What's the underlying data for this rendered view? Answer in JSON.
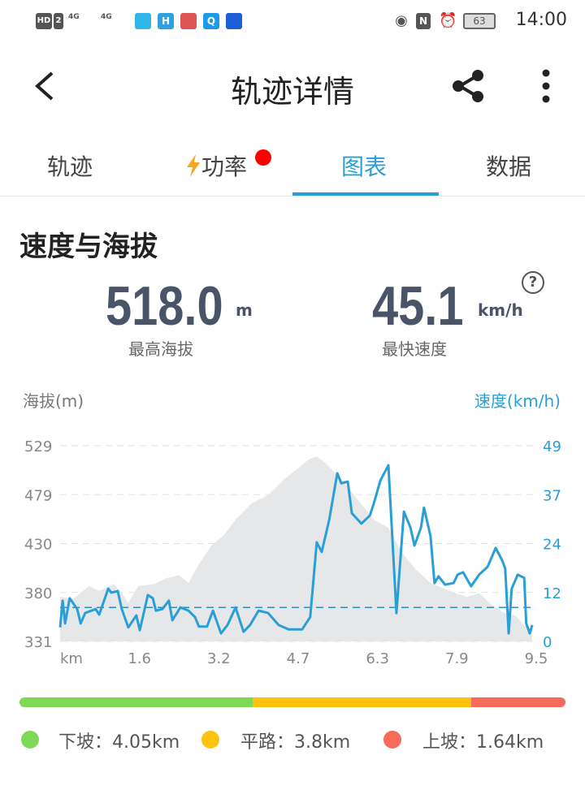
{
  "status_bar": {
    "left_icons": [
      "hd-icon",
      "sim-2-icon",
      "signal-4g-icon",
      "signal-4g-icon",
      "location-app-icon",
      "h-app-icon",
      "book-app-icon",
      "search-app-icon",
      "bulb-app-icon"
    ],
    "hd": "HD",
    "sim": "2",
    "net1": "4G",
    "net2": "4G",
    "right_icons": [
      "eye-icon",
      "nfc-icon",
      "alarm-icon",
      "battery-icon"
    ],
    "battery": "63",
    "time": "14:00"
  },
  "header": {
    "title": "轨迹详情",
    "back_icon": "chevron-left-icon",
    "share_icon": "share-icon",
    "more_icon": "more-vertical-icon"
  },
  "tabs": [
    {
      "label": "轨迹"
    },
    {
      "label": "功率",
      "icon": "lightning-icon",
      "badge": true
    },
    {
      "label": "图表",
      "active": true
    },
    {
      "label": "数据"
    }
  ],
  "section": {
    "title": "速度与海拔",
    "help_icon": "question-icon",
    "max_altitude": {
      "value": "518.0",
      "unit": "m",
      "label": "最高海拔"
    },
    "max_speed": {
      "value": "45.1",
      "unit": "km/h",
      "label": "最快速度"
    }
  },
  "colors": {
    "accent": "#2a9fd6",
    "speed_line": "#2a9fd6",
    "elevation_fill": "#e6e7e9",
    "downhill": "#7ed957",
    "flat": "#ffc20e",
    "uphill": "#f76b5b",
    "badge": "#ff0000",
    "power_icon": "#f5a623"
  },
  "chart_data": {
    "type": "line",
    "ylabel_left": "海拔(m)",
    "ylabel_right": "速度(km/h)",
    "x_ticks": [
      "km",
      "1.6",
      "3.2",
      "4.7",
      "6.3",
      "7.9",
      "9.5"
    ],
    "y_left_ticks": [
      "529",
      "479",
      "430",
      "380",
      "331"
    ],
    "y_right_ticks": [
      "49",
      "37",
      "24",
      "12",
      "0"
    ],
    "xlim": [
      0,
      9.5
    ],
    "ylim_left": [
      331,
      529
    ],
    "ylim_right": [
      0,
      49
    ],
    "grid": true,
    "avg_speed": 8.5,
    "elevation": {
      "x": [
        0,
        0.26,
        0.58,
        0.78,
        1.07,
        1.23,
        1.36,
        1.56,
        1.88,
        2.12,
        2.37,
        2.56,
        2.77,
        3.02,
        3.26,
        3.5,
        3.83,
        4.15,
        4.47,
        4.72,
        4.96,
        5.12,
        5.28,
        5.61,
        5.93,
        6.26,
        6.55,
        6.82,
        7.07,
        7.39,
        7.88,
        8.12,
        8.36,
        8.61,
        8.85,
        9.09,
        9.26,
        9.42
      ],
      "y": [
        376,
        374,
        387,
        382,
        389,
        380,
        370,
        387,
        389,
        395,
        398,
        390,
        409,
        428,
        438,
        454,
        471,
        479,
        495,
        505,
        515,
        518,
        512,
        495,
        475,
        454,
        446,
        421,
        405,
        390,
        380,
        376,
        380,
        368,
        360,
        357,
        347,
        343
      ]
    },
    "speed": {
      "x": [
        0,
        0.05,
        0.1,
        0.19,
        0.34,
        0.41,
        0.5,
        0.71,
        0.78,
        0.96,
        1.02,
        1.15,
        1.23,
        1.36,
        1.52,
        1.59,
        1.75,
        1.85,
        1.91,
        2.04,
        2.17,
        2.24,
        2.4,
        2.56,
        2.69,
        2.77,
        2.93,
        3.05,
        3.21,
        3.34,
        3.5,
        3.66,
        3.79,
        3.96,
        4.15,
        4.36,
        4.56,
        4.83,
        4.99,
        5.12,
        5.22,
        5.37,
        5.53,
        5.61,
        5.74,
        5.82,
        6.01,
        6.18,
        6.26,
        6.39,
        6.55,
        6.71,
        6.86,
        6.99,
        7.07,
        7.2,
        7.26,
        7.39,
        7.47,
        7.55,
        7.68,
        7.85,
        7.93,
        8.04,
        8.2,
        8.36,
        8.53,
        8.69,
        8.82,
        8.88,
        8.95,
        9.01,
        9.13,
        9.26,
        9.3,
        9.37,
        9.42
      ],
      "y": [
        3.5,
        10.2,
        4.5,
        10.8,
        8.1,
        4.5,
        7.1,
        8.1,
        6.7,
        13.2,
        12.2,
        12.6,
        8.1,
        3.5,
        6.5,
        2.8,
        11.6,
        10.8,
        7.7,
        8.1,
        10.2,
        5.3,
        8.5,
        7.7,
        6.1,
        3.7,
        3.7,
        7.7,
        2.0,
        4.1,
        8.5,
        2.4,
        4.1,
        7.7,
        7.1,
        4.1,
        3.0,
        3.0,
        6.1,
        24.8,
        22.4,
        30.5,
        42.1,
        39.6,
        40.0,
        32.1,
        29.5,
        31.5,
        34.6,
        40.3,
        44.1,
        7.1,
        32.5,
        28.5,
        24.0,
        28.5,
        33.5,
        26.4,
        14.6,
        16.3,
        14.2,
        14.6,
        16.7,
        17.3,
        13.8,
        16.7,
        18.7,
        23.4,
        20.3,
        18.3,
        2.0,
        13.2,
        16.7,
        15.9,
        4.5,
        2.0,
        4.1
      ]
    }
  },
  "terrain": {
    "km_total": 9.49,
    "items": [
      {
        "label": "下坡：",
        "value": "4.05km",
        "km": 4.05
      },
      {
        "label": "平路：",
        "value": "3.8km",
        "km": 3.8
      },
      {
        "label": "上坡：",
        "value": "1.64km",
        "km": 1.64
      }
    ]
  }
}
